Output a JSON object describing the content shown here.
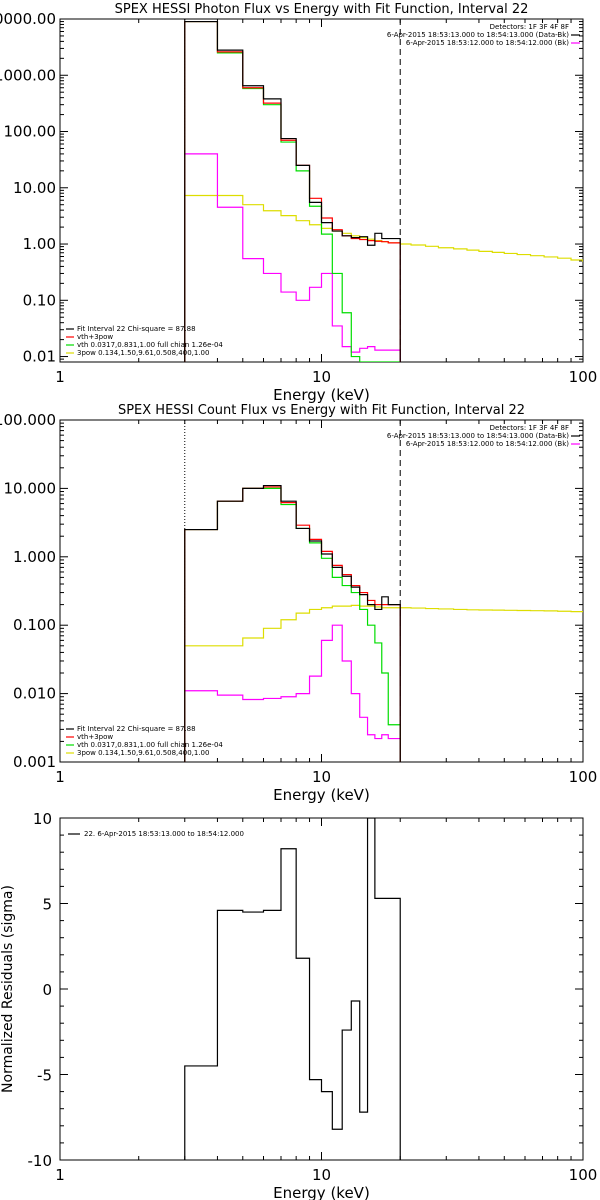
{
  "chart_data": [
    {
      "type": "line",
      "title": "SPEX HESSI Photon Flux vs Energy with Fit Function, Interval 22",
      "xlabel": "Energy (keV)",
      "ylabel": "",
      "xscale": "log",
      "yscale": "log",
      "xlim": [
        1,
        100
      ],
      "ylim": [
        0.008,
        10000
      ],
      "x_tick_labels": [
        "1",
        "10",
        "100"
      ],
      "y_tick_labels": [
        "0.01",
        "0.10",
        "1.00",
        "10.00",
        "100.00",
        "1000.00",
        "10000.00"
      ],
      "fit_start": 3,
      "fit_end": 20,
      "legend_top_right": [
        {
          "text": "Detectors: 1F 3F 4F 8F"
        },
        {
          "text": "6-Apr-2015 18:53:13.000 to 18:54:13.000 (Data-Bk)",
          "color": "#000000"
        },
        {
          "text": "6-Apr-2015 18:53:12.000 to 18:54:12.000 (Bk)",
          "color": "#ff00ff"
        }
      ],
      "legend_bottom_left": [
        {
          "text": "Fit Interval 22   Chi-square = 87.88",
          "color": "#000000"
        },
        {
          "text": "vth+3pow",
          "color": "#ff0000"
        },
        {
          "text": "vth 0.0317,0.831,1.00  full chian 1.26e-04",
          "color": "#00dd00"
        },
        {
          "text": "3pow 0.134,1.50,9.61,0.508,400,1.00",
          "color": "#dddd00"
        }
      ],
      "edges": [
        3,
        4,
        5,
        6,
        7,
        8,
        9,
        10,
        11,
        12,
        13,
        14,
        15,
        16,
        17,
        18,
        20
      ],
      "series": [
        {
          "color": "#dddd00",
          "kind": "line",
          "x": [
            3,
            4,
            5,
            6,
            7,
            8,
            9,
            10,
            11,
            12,
            13,
            14,
            15,
            16,
            17,
            18,
            20,
            22,
            25,
            28,
            32,
            36,
            40,
            45,
            50,
            56,
            63,
            71,
            80,
            90,
            100
          ],
          "values": [
            7.3,
            7.3,
            5.0,
            3.9,
            3.2,
            2.6,
            2.2,
            1.9,
            1.7,
            1.55,
            1.4,
            1.3,
            1.22,
            1.15,
            1.1,
            1.05,
            1.0,
            0.96,
            0.91,
            0.86,
            0.82,
            0.78,
            0.74,
            0.71,
            0.68,
            0.65,
            0.62,
            0.59,
            0.56,
            0.52,
            0.48
          ]
        },
        {
          "color": "#ff00ff",
          "values": [
            40,
            4.5,
            0.55,
            0.3,
            0.14,
            0.1,
            0.17,
            0.3,
            0.035,
            0.015,
            0.012,
            0.014,
            0.015,
            0.013,
            0.013,
            0.013
          ]
        },
        {
          "color": "#00dd00",
          "values": [
            9000,
            2500,
            580,
            300,
            65,
            20,
            4.7,
            1.5,
            0.3,
            0.06,
            0.01,
            0.008,
            0.008,
            0.008,
            0.008,
            0.008
          ]
        },
        {
          "color": "#ff0000",
          "values": [
            9000,
            2600,
            600,
            320,
            70,
            25,
            6.5,
            2.9,
            1.8,
            1.4,
            1.25,
            1.2,
            1.15,
            1.12,
            1.1,
            1.05
          ]
        },
        {
          "color": "#000000",
          "values": [
            9000,
            2800,
            650,
            380,
            75,
            25,
            5.5,
            2.4,
            1.7,
            1.4,
            1.3,
            1.35,
            0.95,
            1.55,
            1.25,
            1.25
          ]
        }
      ]
    },
    {
      "type": "line",
      "title": "SPEX HESSI Count Flux vs Energy with Fit Function, Interval 22",
      "xlabel": "Energy (keV)",
      "ylabel": "",
      "xscale": "log",
      "yscale": "log",
      "xlim": [
        1,
        100
      ],
      "ylim": [
        0.001,
        100
      ],
      "x_tick_labels": [
        "1",
        "10",
        "100"
      ],
      "y_tick_labels": [
        "0.001",
        "0.010",
        "0.100",
        "1.000",
        "10.000",
        "100.000"
      ],
      "fit_start": 3,
      "fit_end": 20,
      "legend_top_right": [
        {
          "text": "Detectors: 1F 3F 4F 8F"
        },
        {
          "text": "6-Apr-2015 18:53:13.000 to 18:54:13.000 (Data-Bk)",
          "color": "#000000"
        },
        {
          "text": "6-Apr-2015 18:53:12.000 to 18:54:12.000 (Bk)",
          "color": "#ff00ff"
        }
      ],
      "legend_bottom_left": [
        {
          "text": "Fit Interval 22   Chi-square = 87.88",
          "color": "#000000"
        },
        {
          "text": "vth+3pow",
          "color": "#ff0000"
        },
        {
          "text": "vth 0.0317,0.831,1.00  full chian 1.26e-04",
          "color": "#00dd00"
        },
        {
          "text": "3pow 0.134,1.50,9.61,0.508,400,1.00",
          "color": "#dddd00"
        }
      ],
      "edges": [
        3,
        4,
        5,
        6,
        7,
        8,
        9,
        10,
        11,
        12,
        13,
        14,
        15,
        16,
        17,
        18,
        20
      ],
      "series": [
        {
          "color": "#dddd00",
          "kind": "line",
          "x": [
            3,
            4,
            5,
            6,
            7,
            8,
            9,
            10,
            11,
            12,
            13,
            14,
            15,
            16,
            17,
            18,
            20,
            22,
            25,
            28,
            32,
            36,
            40,
            45,
            50,
            56,
            63,
            71,
            80,
            90,
            100
          ],
          "values": [
            0.05,
            0.05,
            0.065,
            0.09,
            0.12,
            0.15,
            0.17,
            0.18,
            0.19,
            0.19,
            0.195,
            0.19,
            0.19,
            0.185,
            0.18,
            0.18,
            0.18,
            0.178,
            0.175,
            0.173,
            0.17,
            0.168,
            0.167,
            0.166,
            0.165,
            0.164,
            0.163,
            0.162,
            0.16,
            0.158,
            0.155
          ]
        },
        {
          "color": "#ff00ff",
          "values": [
            0.011,
            0.0095,
            0.0082,
            0.0085,
            0.009,
            0.01,
            0.018,
            0.06,
            0.1,
            0.03,
            0.01,
            0.0045,
            0.0025,
            0.0022,
            0.0025,
            0.0022
          ]
        },
        {
          "color": "#00dd00",
          "values": [
            2.5,
            6.5,
            10,
            10,
            5.8,
            2.6,
            1.6,
            0.95,
            0.5,
            0.38,
            0.3,
            0.17,
            0.1,
            0.055,
            0.02,
            0.0035
          ]
        },
        {
          "color": "#ff0000",
          "values": [
            2.5,
            6.5,
            10,
            10.5,
            6.2,
            2.9,
            1.8,
            1.2,
            0.75,
            0.55,
            0.38,
            0.3,
            0.23,
            0.2,
            0.2,
            0.2
          ]
        },
        {
          "color": "#000000",
          "values": [
            2.5,
            6.5,
            10,
            11,
            6.5,
            2.6,
            1.7,
            1.1,
            0.7,
            0.52,
            0.36,
            0.28,
            0.2,
            0.17,
            0.26,
            0.2
          ]
        }
      ]
    },
    {
      "type": "line",
      "title": "",
      "xlabel": "Energy (keV)",
      "ylabel": "Normalized Residuals (sigma)",
      "xscale": "log",
      "yscale": "linear",
      "xlim": [
        1,
        100
      ],
      "ylim": [
        -10,
        10
      ],
      "x_tick_labels": [
        "1",
        "10",
        "100"
      ],
      "y_tick_labels": [
        "-10",
        "-5",
        "0",
        "5",
        "10"
      ],
      "legend_top_left": [
        {
          "text": "22.  6-Apr-2015 18:53:13.000 to 18:54:12.000",
          "color": "#000000"
        }
      ],
      "edges": [
        3,
        4,
        5,
        6,
        7,
        8,
        9,
        10,
        11,
        12,
        13,
        14,
        15,
        16,
        17,
        18,
        20
      ],
      "series": [
        {
          "color": "#000000",
          "values": [
            -4.5,
            4.6,
            4.5,
            4.6,
            8.2,
            1.8,
            -5.3,
            -6.0,
            -8.2,
            -2.4,
            -0.7,
            -7.2,
            10,
            5.3,
            5.3,
            5.3
          ]
        }
      ]
    }
  ]
}
